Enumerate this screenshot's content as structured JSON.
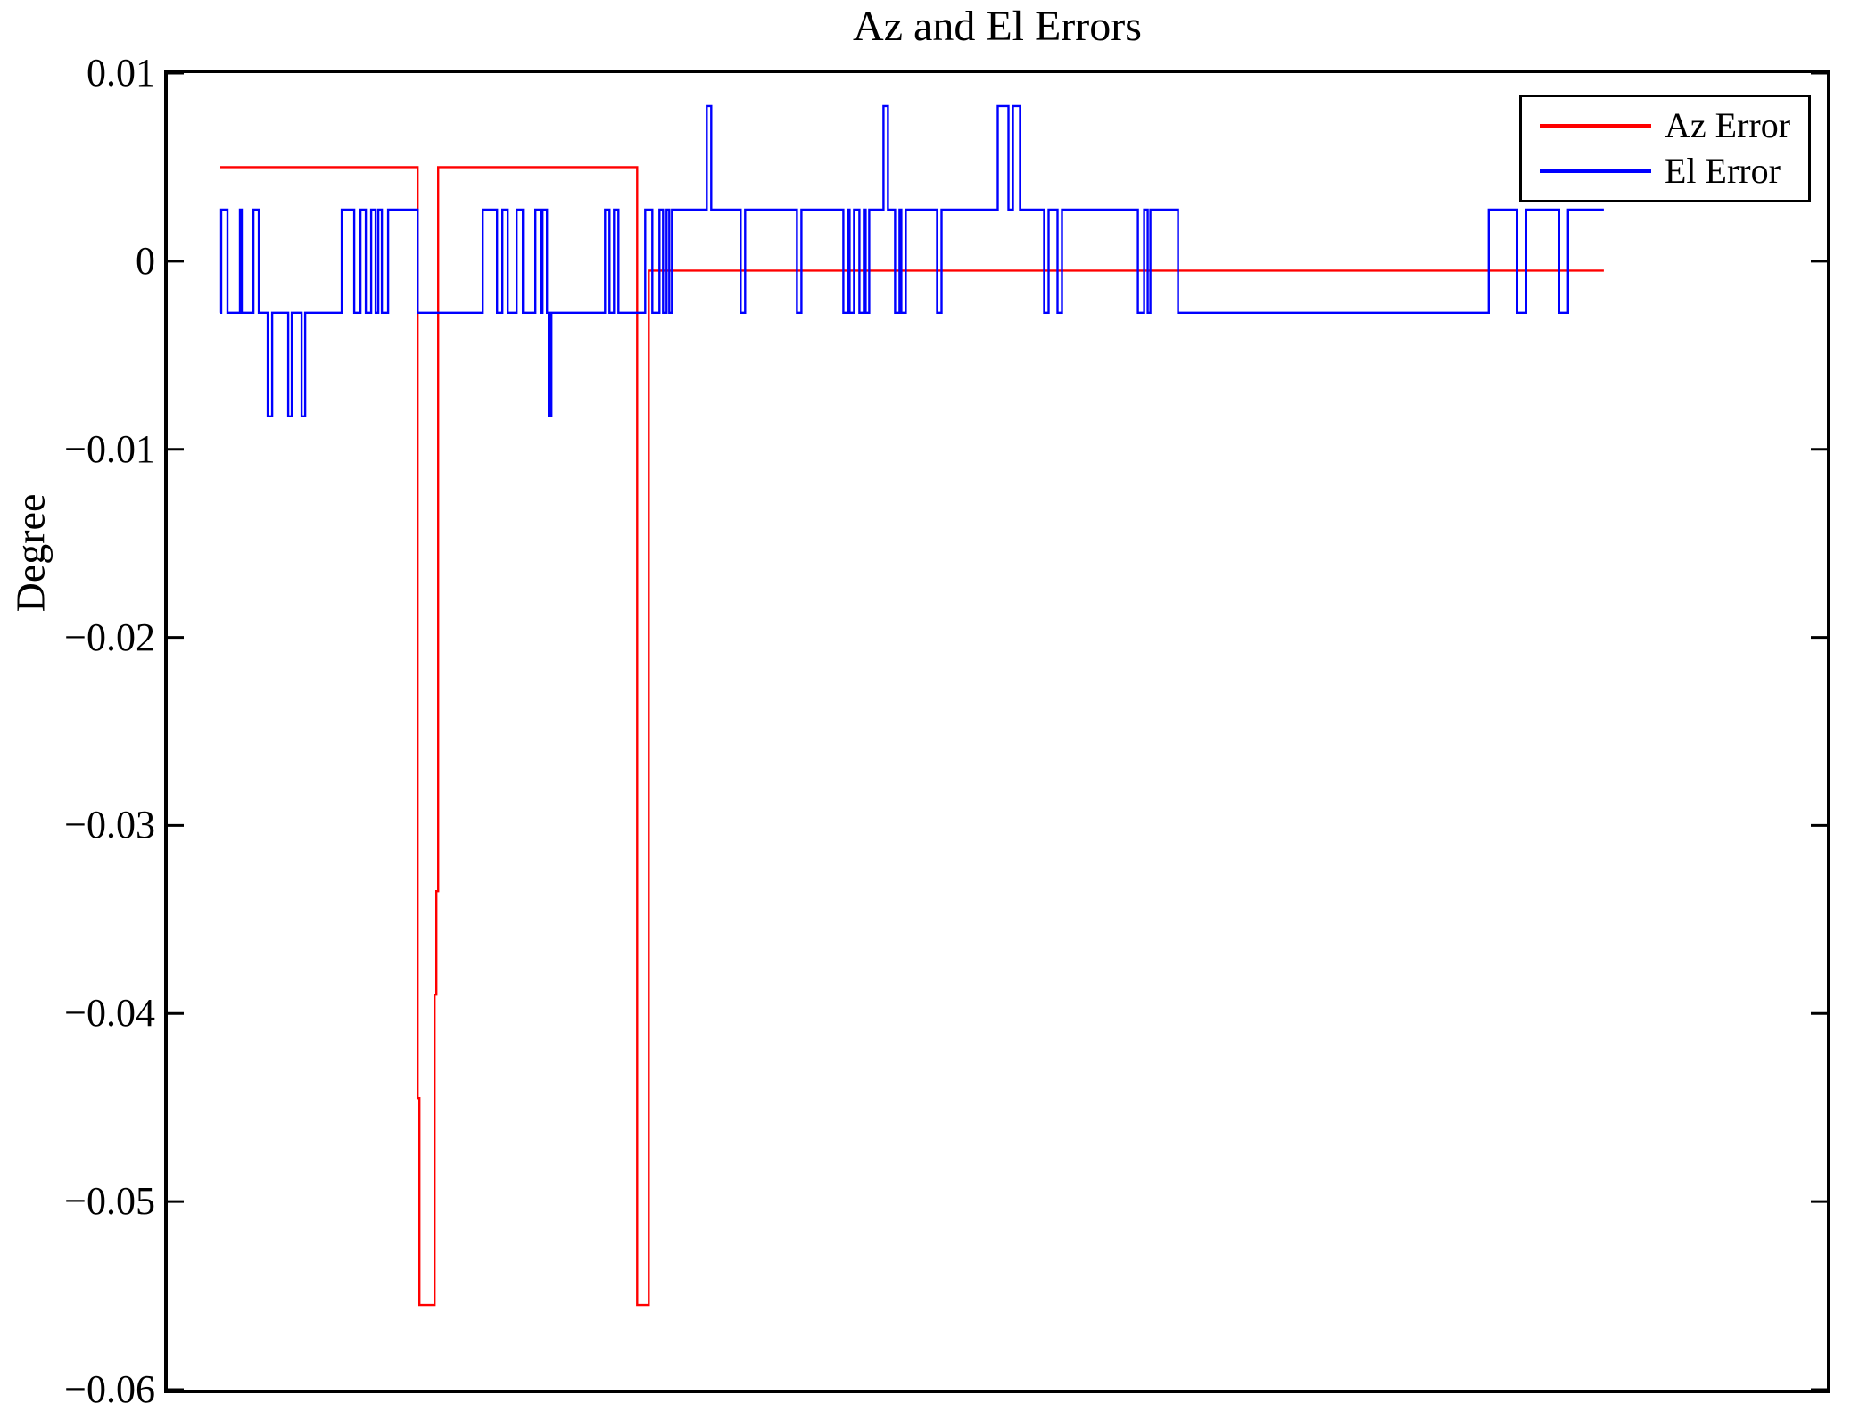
{
  "chart_data": {
    "type": "line",
    "title": "Az and El Errors",
    "ylabel": "Degree",
    "ylim": [
      -0.06,
      0.01
    ],
    "yticks": {
      "values": [
        0.01,
        0,
        -0.01,
        -0.02,
        -0.03,
        -0.04,
        -0.05,
        -0.06
      ],
      "labels": [
        "0.01",
        "0",
        "−0.01",
        "−0.02",
        "−0.03",
        "−0.04",
        "−0.05",
        "−0.06"
      ]
    },
    "x_axis": {
      "tick_labels_visible": false,
      "range": [
        0,
        1859
      ]
    },
    "grid": false,
    "legend": {
      "position": "top-right"
    },
    "axis_color": "#000000",
    "series": [
      {
        "name": "Az Error",
        "color": "#ff0000",
        "style": "step",
        "points": [
          [
            59,
            0.005
          ],
          [
            280,
            -0.0445
          ],
          [
            282,
            -0.0555
          ],
          [
            299,
            -0.039
          ],
          [
            301,
            -0.0335
          ],
          [
            303,
            0.005
          ],
          [
            526,
            -0.0555
          ],
          [
            539,
            -0.0005
          ],
          [
            1609,
            -0.0005
          ]
        ]
      },
      {
        "name": "El Error",
        "color": "#0000ff",
        "style": "step",
        "points": [
          [
            59,
            -0.00275
          ],
          [
            60,
            0.00275
          ],
          [
            67,
            -0.00275
          ],
          [
            81,
            0.00275
          ],
          [
            83,
            -0.00275
          ],
          [
            96,
            0.00275
          ],
          [
            102,
            -0.00275
          ],
          [
            112,
            -0.00825
          ],
          [
            117,
            -0.00275
          ],
          [
            135,
            -0.00825
          ],
          [
            139,
            -0.00275
          ],
          [
            150,
            -0.00825
          ],
          [
            154,
            -0.00275
          ],
          [
            195,
            0.00275
          ],
          [
            209,
            -0.00275
          ],
          [
            216,
            0.00275
          ],
          [
            222,
            -0.00275
          ],
          [
            228,
            0.00275
          ],
          [
            233,
            -0.00275
          ],
          [
            236,
            0.00275
          ],
          [
            240,
            -0.00275
          ],
          [
            247,
            0.00275
          ],
          [
            280,
            -0.00275
          ],
          [
            353,
            0.00275
          ],
          [
            369,
            -0.00275
          ],
          [
            375,
            0.00275
          ],
          [
            381,
            -0.00275
          ],
          [
            391,
            0.00275
          ],
          [
            398,
            -0.00275
          ],
          [
            412,
            0.00275
          ],
          [
            418,
            -0.00275
          ],
          [
            420,
            0.00275
          ],
          [
            425,
            -0.00275
          ],
          [
            427,
            -0.00825
          ],
          [
            430,
            -0.00275
          ],
          [
            490,
            0.00275
          ],
          [
            495,
            -0.00275
          ],
          [
            500,
            0.00275
          ],
          [
            505,
            -0.00275
          ],
          [
            535,
            0.00275
          ],
          [
            543,
            -0.00275
          ],
          [
            551,
            0.00275
          ],
          [
            555,
            -0.00275
          ],
          [
            559,
            0.00275
          ],
          [
            562,
            -0.00275
          ],
          [
            565,
            0.00275
          ],
          [
            604,
            0.00825
          ],
          [
            609,
            0.00275
          ],
          [
            642,
            -0.00275
          ],
          [
            647,
            0.00275
          ],
          [
            705,
            -0.00275
          ],
          [
            710,
            0.00275
          ],
          [
            757,
            -0.00275
          ],
          [
            762,
            0.00275
          ],
          [
            764,
            -0.00275
          ],
          [
            769,
            0.00275
          ],
          [
            775,
            -0.00275
          ],
          [
            780,
            0.00275
          ],
          [
            782,
            -0.00275
          ],
          [
            786,
            0.00275
          ],
          [
            802,
            0.00825
          ],
          [
            807,
            0.00275
          ],
          [
            815,
            -0.00275
          ],
          [
            820,
            0.00275
          ],
          [
            822,
            -0.00275
          ],
          [
            827,
            0.00275
          ],
          [
            862,
            -0.00275
          ],
          [
            867,
            0.00275
          ],
          [
            930,
            0.00825
          ],
          [
            942,
            0.00275
          ],
          [
            947,
            0.00825
          ],
          [
            955,
            0.00275
          ],
          [
            982,
            -0.00275
          ],
          [
            987,
            0.00275
          ],
          [
            997,
            -0.00275
          ],
          [
            1002,
            0.00275
          ],
          [
            1087,
            -0.00275
          ],
          [
            1094,
            0.00275
          ],
          [
            1098,
            -0.00275
          ],
          [
            1101,
            0.00275
          ],
          [
            1132,
            -0.00275
          ],
          [
            1480,
            0.00275
          ],
          [
            1512,
            -0.00275
          ],
          [
            1522,
            0.00275
          ],
          [
            1559,
            -0.00275
          ],
          [
            1569,
            0.00275
          ],
          [
            1609,
            0.00275
          ]
        ]
      }
    ]
  }
}
